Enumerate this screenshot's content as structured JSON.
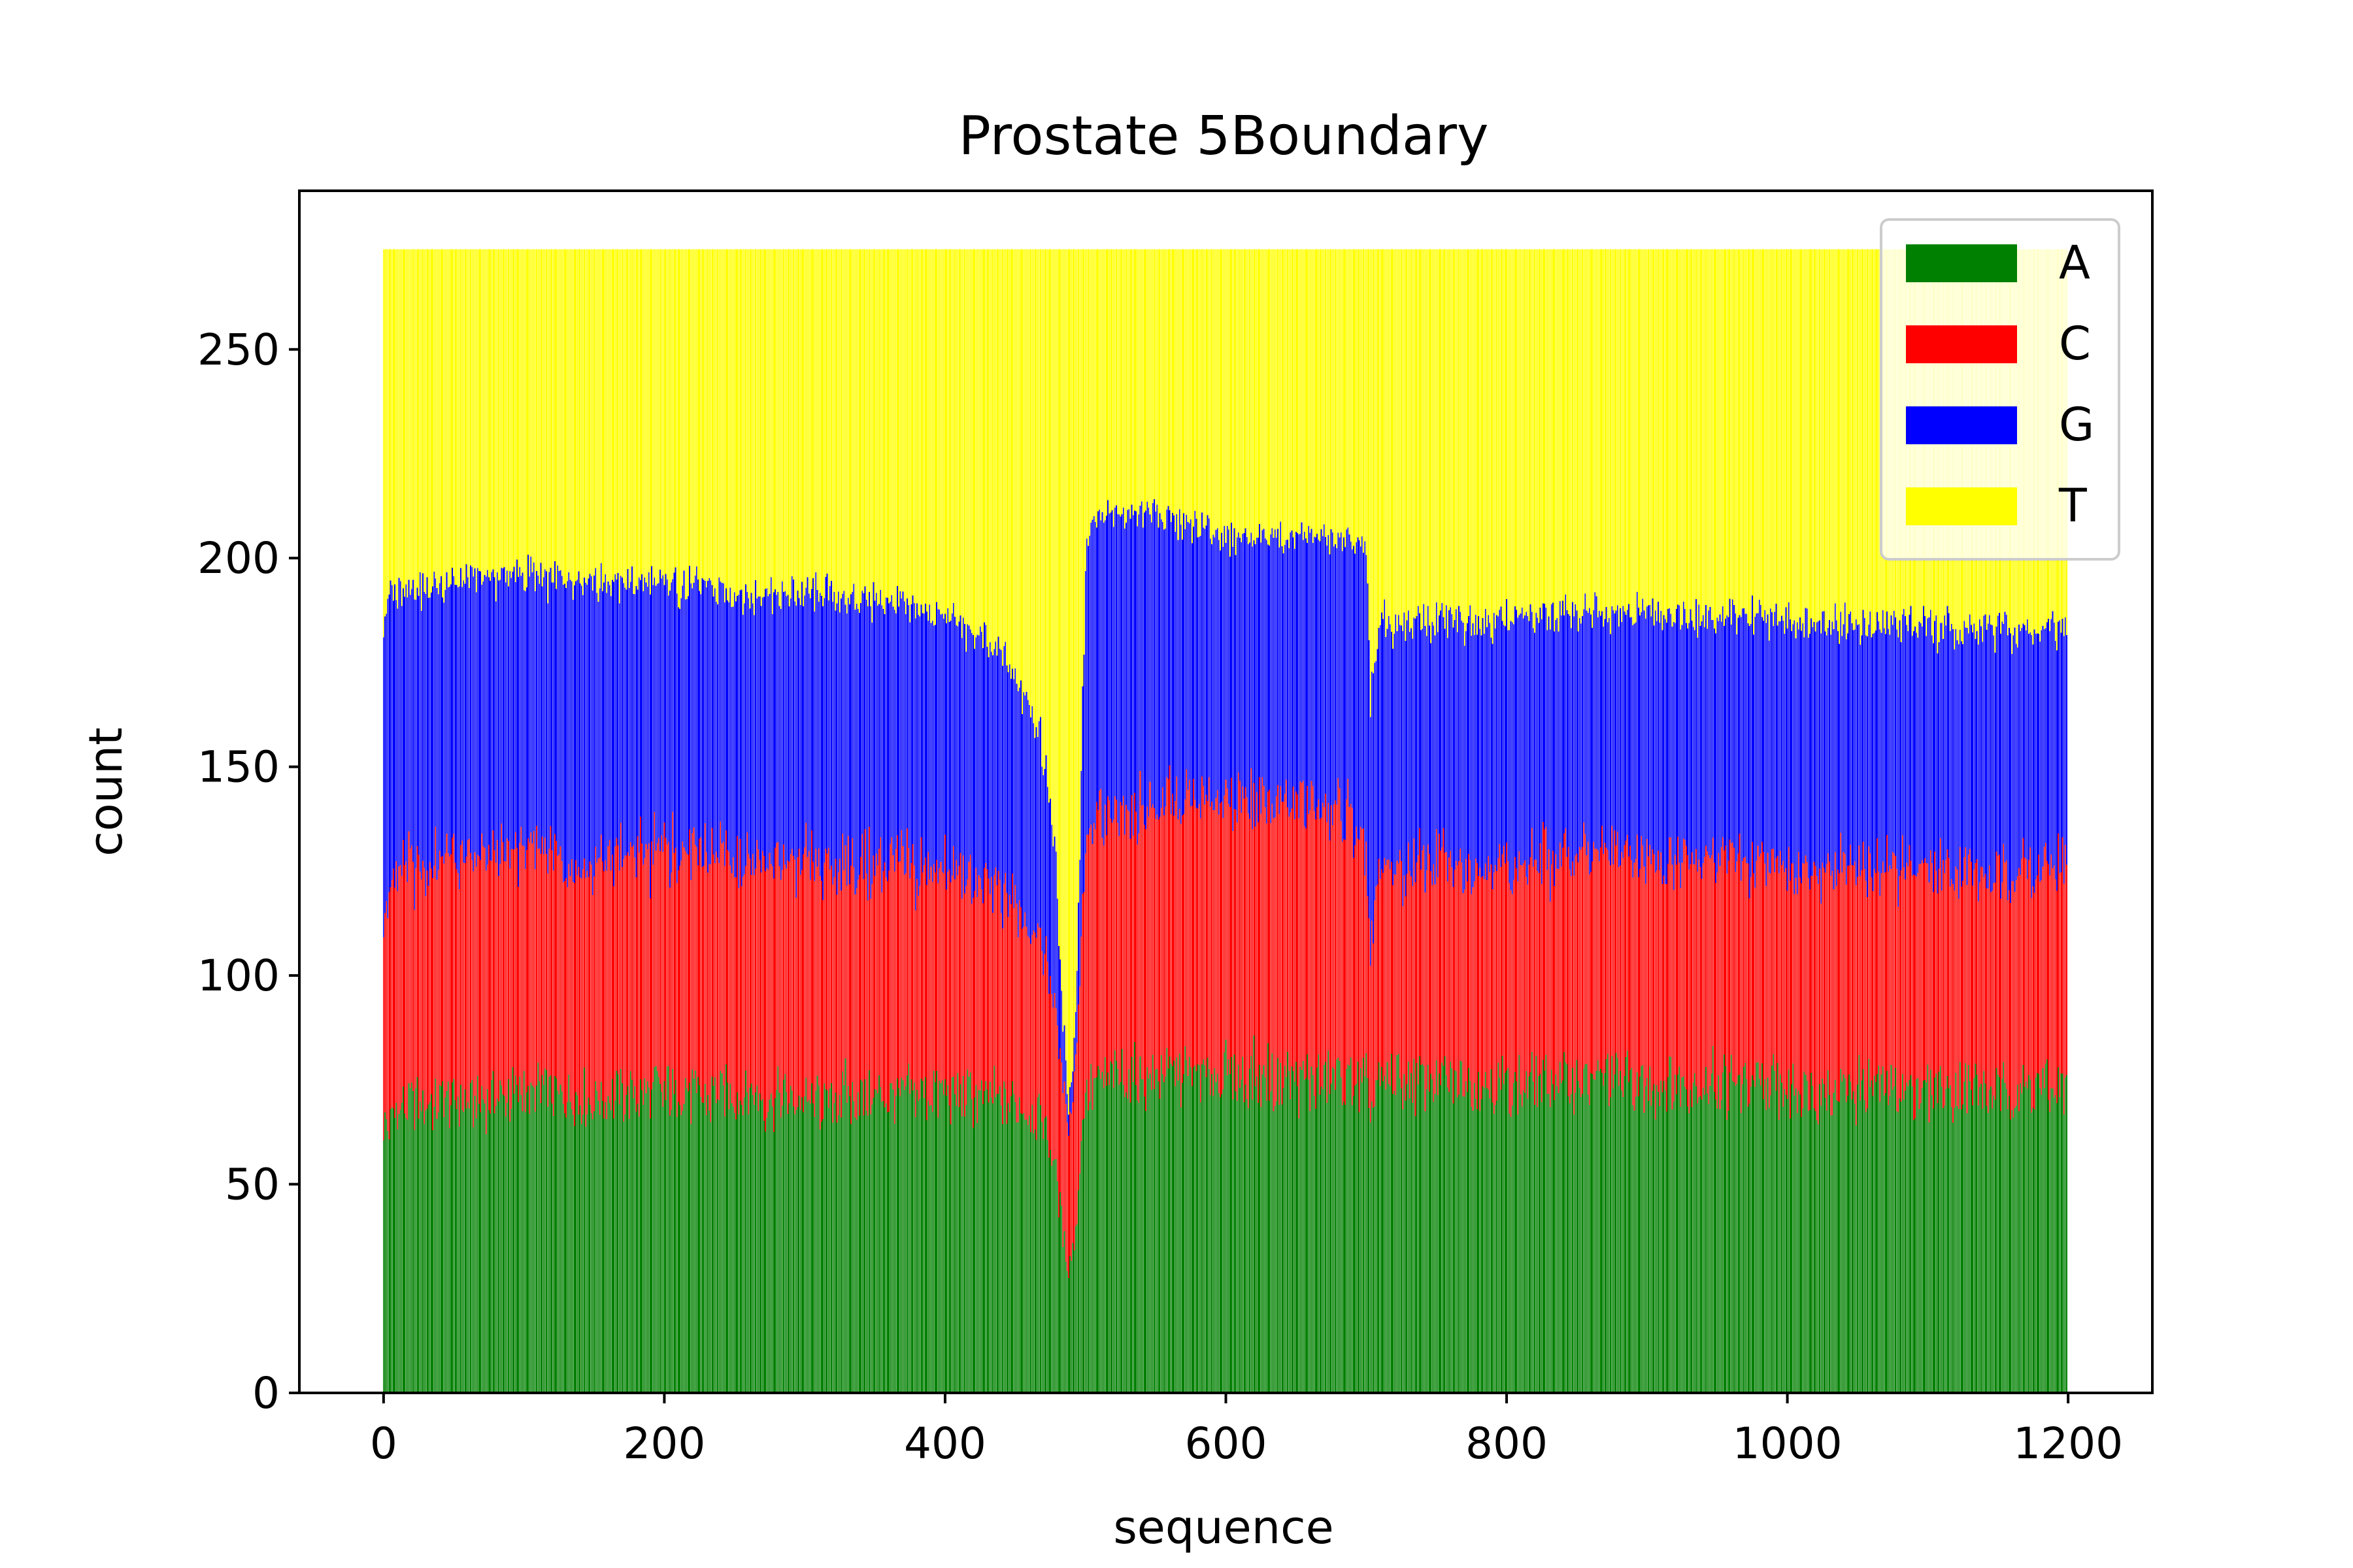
{
  "chart_data": {
    "type": "bar",
    "stacked": true,
    "title": "Prostate 5Boundary",
    "xlabel": "sequence",
    "ylabel": "count",
    "xlim": [
      -60,
      1260
    ],
    "ylim": [
      0,
      288
    ],
    "x_ticks": [
      0,
      200,
      400,
      600,
      800,
      1000,
      1200
    ],
    "y_ticks": [
      0,
      50,
      100,
      150,
      200,
      250
    ],
    "total_per_position": 274,
    "grid": false,
    "legend_position": "top-right",
    "profile_x": [
      0,
      5,
      10,
      50,
      100,
      150,
      200,
      250,
      300,
      350,
      400,
      440,
      460,
      470,
      478,
      484,
      488,
      493,
      497,
      500,
      505,
      520,
      550,
      600,
      650,
      690,
      700,
      703,
      710,
      750,
      800,
      850,
      900,
      950,
      1000,
      1050,
      1100,
      1150,
      1199
    ],
    "series": [
      {
        "name": "A",
        "color": "#008000",
        "values": [
          62,
          66,
          68,
          70,
          72,
          71,
          72,
          71,
          70,
          71,
          72,
          70,
          68,
          65,
          55,
          38,
          30,
          38,
          60,
          72,
          74,
          75,
          76,
          76,
          75,
          74,
          72,
          68,
          74,
          75,
          74,
          75,
          74,
          74,
          73,
          73,
          73,
          72,
          73
        ]
      },
      {
        "name": "C",
        "color": "#ff0000",
        "values": [
          52,
          55,
          56,
          58,
          58,
          57,
          58,
          57,
          56,
          56,
          54,
          50,
          46,
          42,
          38,
          35,
          34,
          40,
          50,
          58,
          62,
          64,
          65,
          66,
          66,
          64,
          55,
          40,
          50,
          52,
          53,
          54,
          54,
          54,
          53,
          53,
          53,
          53,
          52
        ]
      },
      {
        "name": "G",
        "color": "#0000ff",
        "values": [
          72,
          70,
          68,
          66,
          66,
          66,
          64,
          64,
          65,
          63,
          60,
          57,
          52,
          47,
          40,
          15,
          5,
          10,
          40,
          70,
          72,
          72,
          70,
          63,
          64,
          67,
          75,
          60,
          60,
          58,
          58,
          58,
          59,
          58,
          59,
          58,
          58,
          58,
          58
        ]
      },
      {
        "name": "T",
        "color": "#ffff00",
        "values": [
          88,
          83,
          82,
          80,
          78,
          80,
          80,
          82,
          83,
          84,
          88,
          97,
          108,
          120,
          141,
          186,
          205,
          186,
          124,
          74,
          66,
          63,
          63,
          69,
          69,
          69,
          72,
          106,
          90,
          89,
          89,
          87,
          87,
          88,
          89,
          90,
          90,
          91,
          91
        ]
      }
    ]
  }
}
